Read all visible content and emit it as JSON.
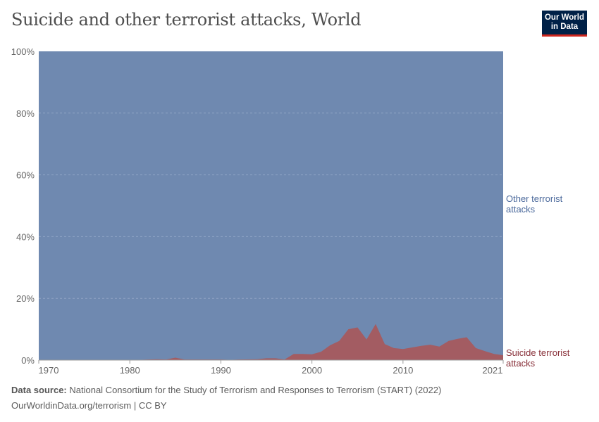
{
  "title": "Suicide and other terrorist attacks, World",
  "logo": "Our World in Data",
  "footer": {
    "source_label": "Data source:",
    "source": "National Consortium for the Study of Terrorism and Responses to Terrorism (START) (2022)",
    "link": "OurWorldinData.org/terrorism | CC BY"
  },
  "colors": {
    "other": "#6f89b0",
    "suicide": "#a35c62",
    "other_label": "#4c6a9c",
    "suicide_label": "#883039"
  },
  "chart_data": {
    "type": "area",
    "stacked": "relative",
    "title": "Suicide and other terrorist attacks, World",
    "xlim": [
      1970,
      2021
    ],
    "ylim": [
      0,
      100
    ],
    "yticks": [
      "0%",
      "20%",
      "40%",
      "60%",
      "80%",
      "100%"
    ],
    "xticks": [
      "1970",
      "1980",
      "1990",
      "2000",
      "2010",
      "2021"
    ],
    "grid": "horizontal dashed",
    "x": [
      1970,
      1971,
      1972,
      1973,
      1974,
      1975,
      1976,
      1977,
      1978,
      1979,
      1980,
      1981,
      1982,
      1983,
      1984,
      1985,
      1986,
      1987,
      1988,
      1989,
      1990,
      1991,
      1992,
      1994,
      1995,
      1996,
      1997,
      1998,
      1999,
      2000,
      2001,
      2002,
      2003,
      2004,
      2005,
      2006,
      2007,
      2008,
      2009,
      2010,
      2011,
      2012,
      2013,
      2014,
      2015,
      2016,
      2017,
      2018,
      2019,
      2020,
      2021
    ],
    "series": [
      {
        "name": "Suicide terrorist attacks",
        "values": [
          0,
          0,
          0,
          0,
          0,
          0,
          0,
          0,
          0,
          0,
          0,
          0.1,
          0.2,
          0.3,
          0.2,
          0.8,
          0.2,
          0.2,
          0.2,
          0.2,
          0.2,
          0.1,
          0.2,
          0.3,
          0.6,
          0.6,
          0.2,
          2.0,
          2.0,
          1.9,
          2.7,
          4.8,
          6.2,
          10.0,
          10.6,
          6.7,
          11.7,
          5.2,
          3.9,
          3.6,
          4.1,
          4.6,
          5.0,
          4.4,
          6.2,
          6.9,
          7.4,
          3.9,
          2.9,
          2.0,
          1.6
        ]
      },
      {
        "name": "Other terrorist attacks",
        "values": "remainder to 100%"
      }
    ],
    "legend": "right, inline labels"
  }
}
